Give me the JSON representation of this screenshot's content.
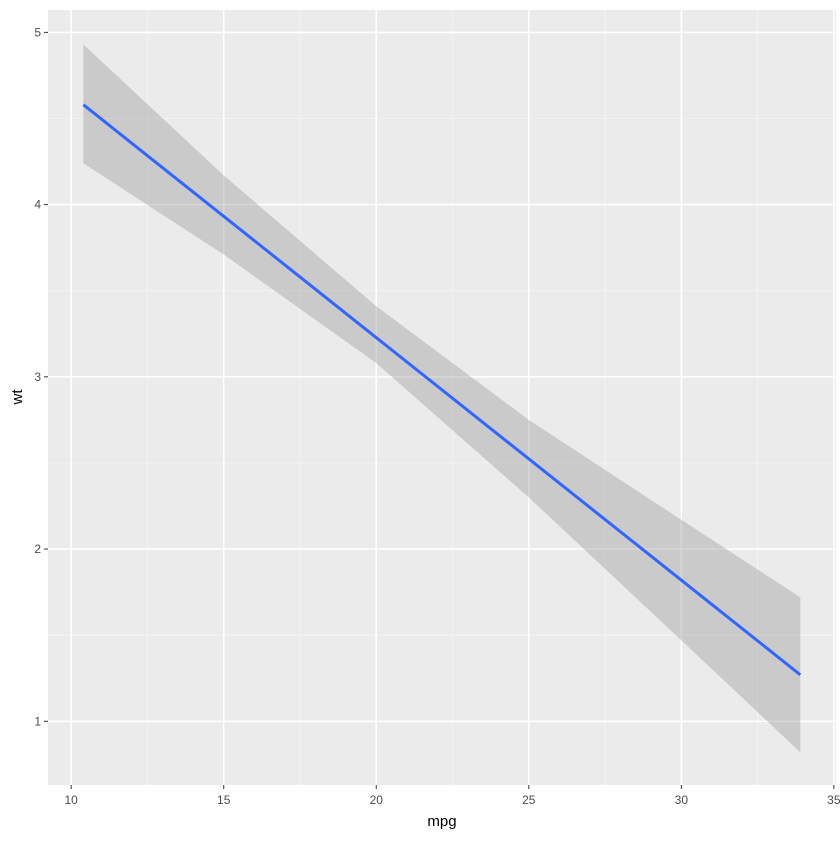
{
  "chart_data": {
    "type": "line",
    "title": "",
    "xlabel": "mpg",
    "ylabel": "wt",
    "xlim": [
      9.24,
      35.07
    ],
    "ylim": [
      0.63,
      5.13
    ],
    "x_ticks": [
      10,
      15,
      20,
      25,
      30,
      35
    ],
    "y_ticks": [
      1,
      2,
      3,
      4,
      5
    ],
    "x_minor_ticks": [
      12.5,
      17.5,
      22.5,
      27.5,
      32.5
    ],
    "y_minor_ticks": [
      1.5,
      2.5,
      3.5,
      4.5
    ],
    "grid": true,
    "legend": "none",
    "series": [
      {
        "type": "smooth-lm",
        "x": [
          10.4,
          33.9
        ],
        "y": [
          4.58,
          1.27
        ],
        "confidence_band": {
          "x": [
            10.4,
            15,
            20,
            25,
            30,
            33.9
          ],
          "lower": [
            4.24,
            3.71,
            3.08,
            2.3,
            1.47,
            0.82
          ],
          "upper": [
            4.93,
            4.17,
            3.41,
            2.75,
            2.17,
            1.72
          ]
        }
      }
    ],
    "colors": {
      "panel_background": "#ebebeb",
      "grid_major": "#ffffff",
      "grid_minor": "#f5f5f5",
      "line": "#3366ff",
      "band": "#999999"
    }
  }
}
